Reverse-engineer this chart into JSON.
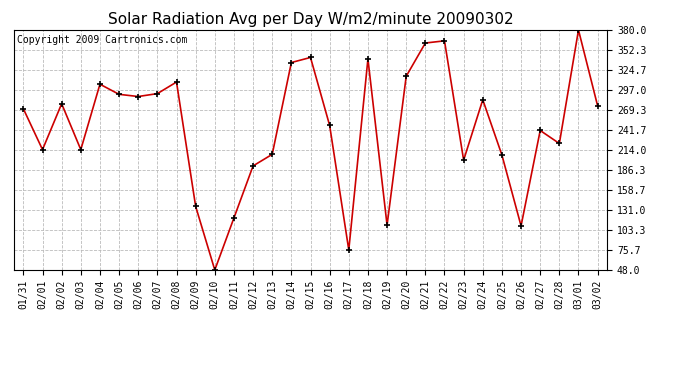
{
  "title": "Solar Radiation Avg per Day W/m2/minute 20090302",
  "copyright": "Copyright 2009 Cartronics.com",
  "dates": [
    "01/31",
    "02/01",
    "02/02",
    "02/03",
    "02/04",
    "02/05",
    "02/06",
    "02/07",
    "02/08",
    "02/09",
    "02/10",
    "02/11",
    "02/12",
    "02/13",
    "02/14",
    "02/15",
    "02/16",
    "02/17",
    "02/18",
    "02/19",
    "02/20",
    "02/21",
    "02/22",
    "02/23",
    "02/24",
    "02/25",
    "02/26",
    "02/27",
    "02/28",
    "03/01",
    "03/02"
  ],
  "values": [
    271.0,
    214.5,
    278.0,
    214.5,
    305.0,
    291.0,
    288.0,
    292.0,
    308.0,
    136.0,
    48.0,
    120.0,
    192.0,
    208.0,
    335.0,
    342.0,
    248.0,
    75.7,
    340.0,
    110.0,
    316.0,
    362.0,
    365.0,
    200.0,
    283.5,
    207.0,
    109.0,
    241.0,
    223.0,
    380.0,
    275.0
  ],
  "line_color": "#cc0000",
  "marker": "+",
  "marker_color": "#000000",
  "ylim": [
    48.0,
    380.0
  ],
  "yticks": [
    48.0,
    75.7,
    103.3,
    131.0,
    158.7,
    186.3,
    214.0,
    241.7,
    269.3,
    297.0,
    324.7,
    352.3,
    380.0
  ],
  "background_color": "#ffffff",
  "grid_color": "#bbbbbb",
  "title_fontsize": 11,
  "copyright_fontsize": 7,
  "tick_fontsize": 7
}
